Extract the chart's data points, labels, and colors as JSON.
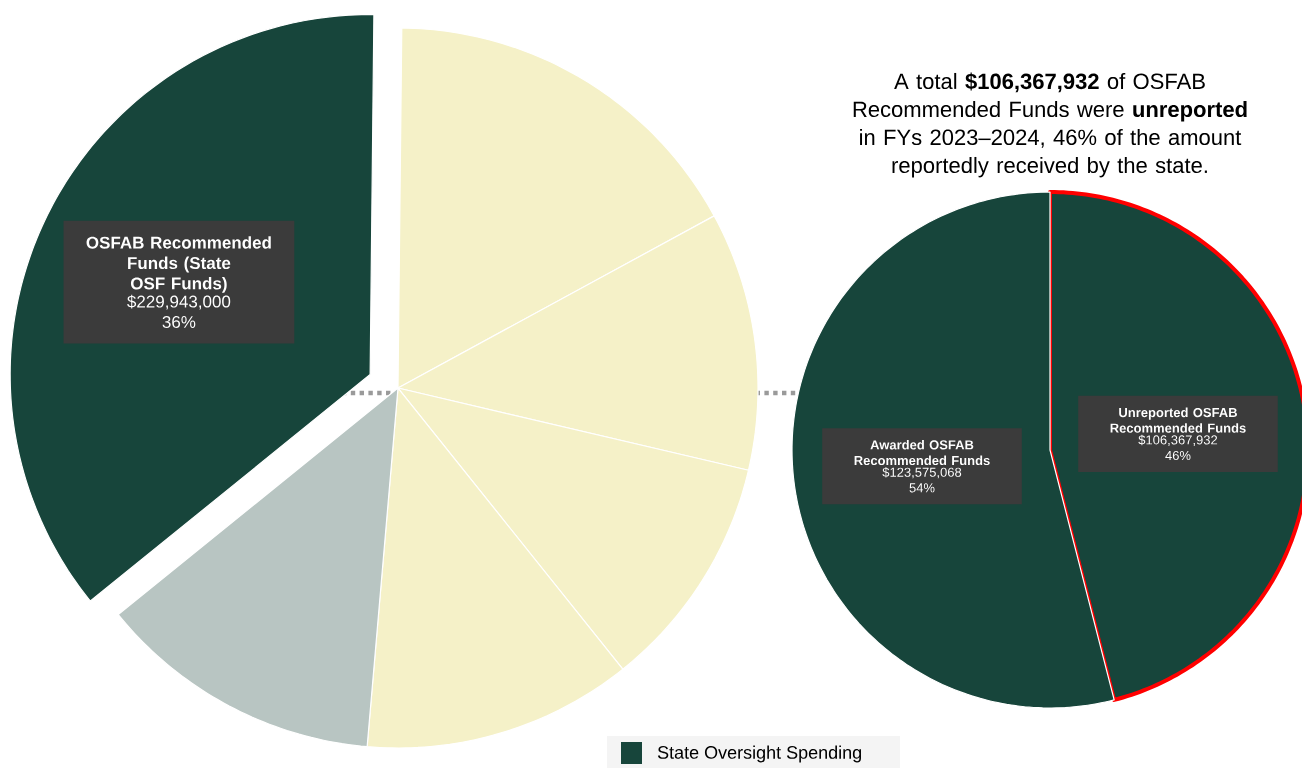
{
  "chart_data": [
    {
      "type": "pie",
      "categories": [
        "OSFAB Recommended Funds (State OSF Funds)",
        null,
        null,
        null,
        null,
        null
      ],
      "values": [
        36,
        16.9,
        11.6,
        10.6,
        12.1,
        12.8
      ],
      "colors": [
        "#17453b",
        "#f5f1c8",
        "#f5f1c8",
        "#f5f1c8",
        "#f5f1c8",
        "#b8c5c2"
      ],
      "value_labels": [
        "$229,943,000 36%",
        null,
        null,
        null,
        null,
        null
      ],
      "annotations": [
        "State Oversight Spending"
      ]
    },
    {
      "type": "pie",
      "title": "A total **$106,367,932** of OSFAB Recommended Funds were **unreported** in FYs 2023–2024, 46% of the amount reportedly received by the state.",
      "categories": [
        "Unreported OSFAB Recommended Funds",
        "Awarded OSFAB Recommended Funds"
      ],
      "values": [
        46,
        54
      ],
      "colors": [
        "#17453b",
        "#17453b"
      ],
      "value_labels": [
        "$106,367,932 46%",
        "$123,575,068 54%"
      ]
    }
  ]
}
